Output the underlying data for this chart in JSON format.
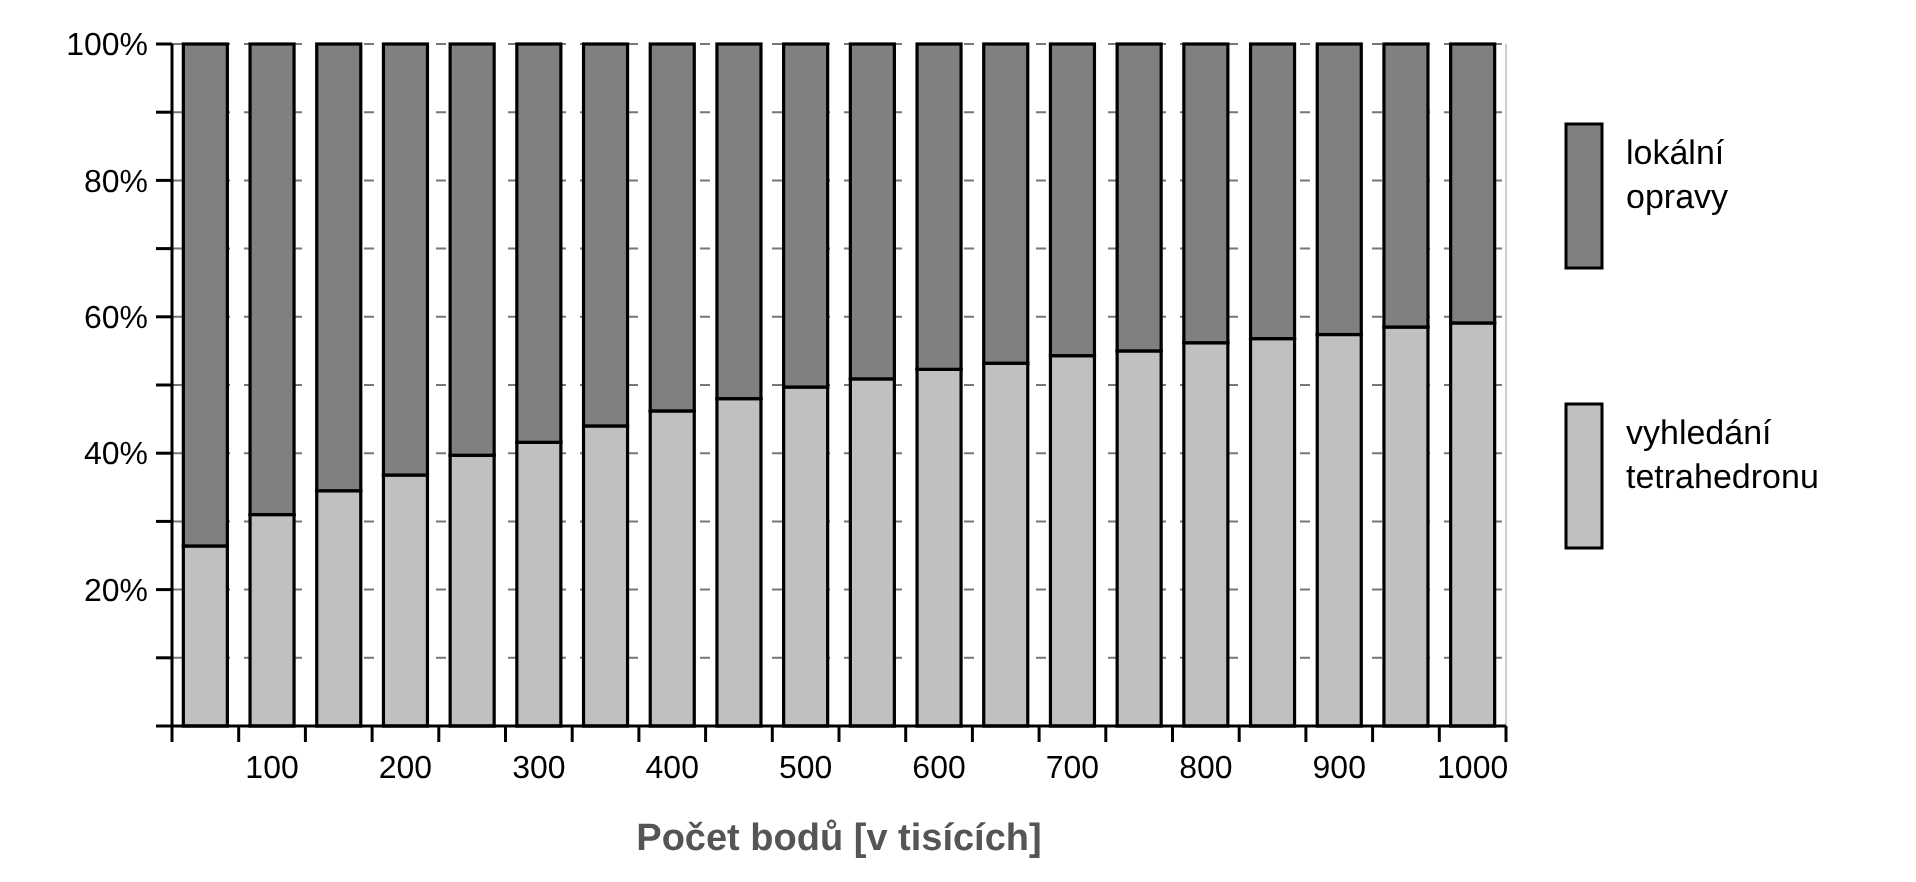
{
  "chart_data": {
    "type": "bar",
    "stacked": true,
    "xlabel": "Počet bodů [v tisících]",
    "categories": [
      null,
      "100",
      null,
      "200",
      null,
      "300",
      null,
      "400",
      null,
      "500",
      null,
      "600",
      null,
      "700",
      null,
      "800",
      null,
      "900",
      null,
      "1000"
    ],
    "series": [
      {
        "name": "vyhledání tetrahedronu",
        "color": "#c0c0c0",
        "values": [
          26.4,
          31,
          34.5,
          36.8,
          39.7,
          41.6,
          44,
          46.2,
          48,
          49.7,
          50.9,
          52.3,
          53.2,
          54.3,
          55,
          56.2,
          56.8,
          57.4,
          58.5,
          59.1
        ]
      },
      {
        "name": "lokální opravy",
        "color": "#808080",
        "values": [
          73.6,
          69,
          65.5,
          63.2,
          60.3,
          58.4,
          56,
          53.8,
          52,
          50.3,
          49.1,
          47.7,
          46.8,
          45.7,
          45,
          43.8,
          43.2,
          42.6,
          41.5,
          40.9
        ]
      }
    ],
    "ylim": [
      0,
      100
    ],
    "yticks": [
      {
        "value": 0,
        "label": null
      },
      {
        "value": 10,
        "label": null
      },
      {
        "value": 20,
        "label": "20%"
      },
      {
        "value": 30,
        "label": null
      },
      {
        "value": 40,
        "label": "40%"
      },
      {
        "value": 50,
        "label": null
      },
      {
        "value": 60,
        "label": "60%"
      },
      {
        "value": 70,
        "label": null
      },
      {
        "value": 80,
        "label": "80%"
      },
      {
        "value": 90,
        "label": null
      },
      {
        "value": 100,
        "label": "100%"
      }
    ],
    "grid": "y",
    "legend": "right"
  }
}
